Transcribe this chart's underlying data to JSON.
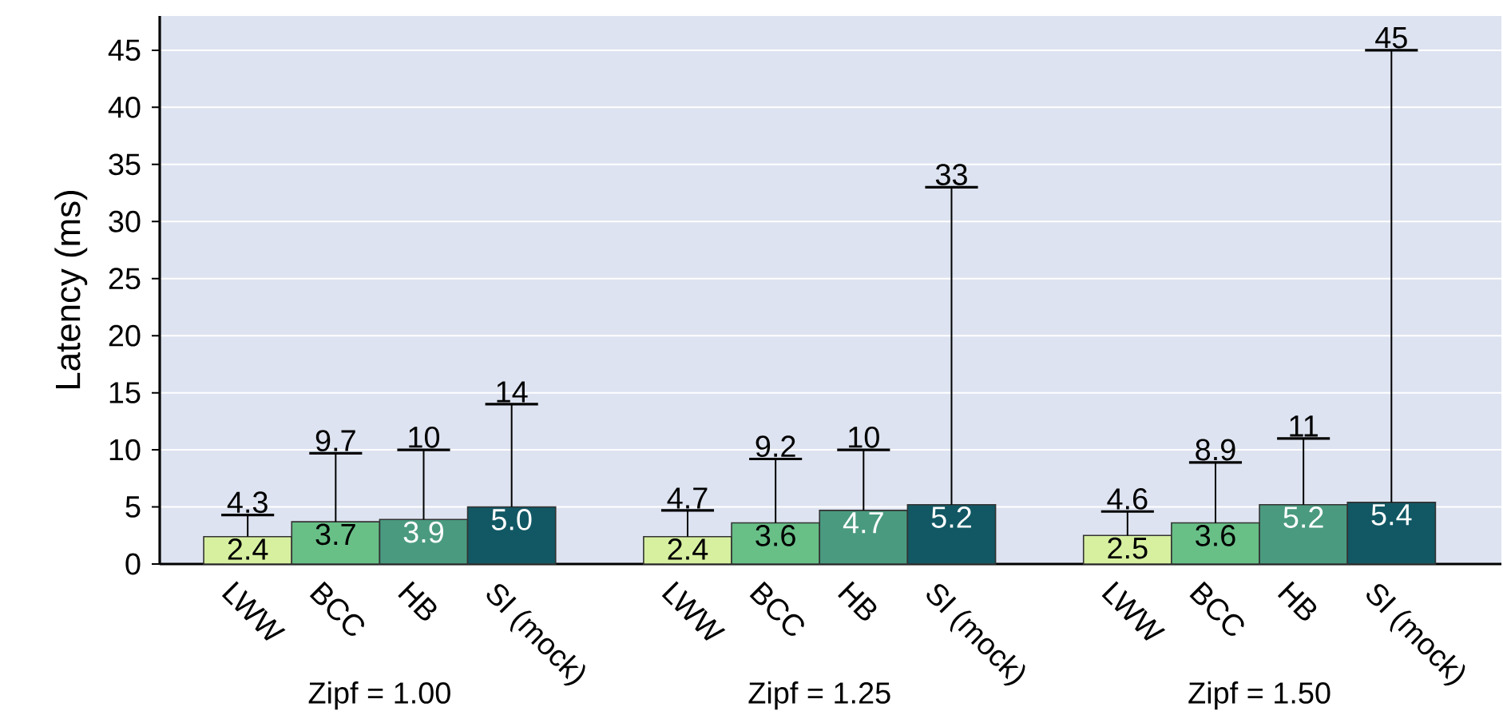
{
  "chart_data": {
    "type": "bar",
    "ylabel": "Latency (ms)",
    "categories": [
      "Zipf = 1.00",
      "Zipf = 1.25",
      "Zipf = 1.50"
    ],
    "series": [
      {
        "name": "LWW",
        "color": "#d6f0a0",
        "values": [
          2.4,
          2.4,
          2.5
        ],
        "value_labels": [
          "2.4",
          "2.4",
          "2.5"
        ],
        "errors": [
          [
            2.4,
            4.3
          ],
          [
            2.4,
            4.7
          ],
          [
            2.5,
            4.6
          ]
        ]
      },
      {
        "name": "BCC",
        "color": "#68c087",
        "values": [
          3.7,
          3.6,
          3.6
        ],
        "value_labels": [
          "3.7",
          "3.6",
          "3.6"
        ],
        "errors": [
          [
            3.7,
            9.7
          ],
          [
            3.6,
            9.2
          ],
          [
            3.6,
            8.9
          ]
        ]
      },
      {
        "name": "HB",
        "color": "#4a9a80",
        "values": [
          3.9,
          4.7,
          5.2
        ],
        "value_labels": [
          "3.9",
          "4.7",
          "5.2"
        ],
        "errors": [
          [
            3.9,
            10
          ],
          [
            4.7,
            10
          ],
          [
            5.2,
            11
          ]
        ]
      },
      {
        "name": "SI (mock)",
        "color": "#115864",
        "values": [
          5.0,
          5.2,
          5.4
        ],
        "value_labels": [
          "5.0",
          "5.2",
          "5.4"
        ],
        "errors": [
          [
            5.0,
            14
          ],
          [
            5.2,
            33
          ],
          [
            5.4,
            45
          ]
        ]
      }
    ],
    "ylim": [
      0,
      48
    ],
    "yticks": [
      0,
      5,
      10,
      15,
      20,
      25,
      30,
      35,
      40,
      45
    ],
    "grid": "y",
    "annotations": [
      "4.3",
      "9.7",
      "10",
      "14",
      "4.7",
      "9.2",
      "10",
      "33",
      "4.6",
      "8.9",
      "11",
      "45"
    ]
  }
}
